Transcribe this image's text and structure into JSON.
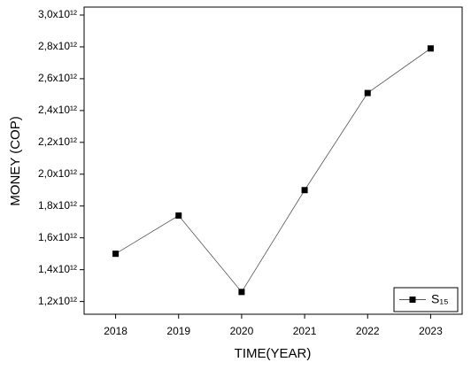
{
  "chart_data": {
    "type": "line",
    "x_label": "TIME(YEAR)",
    "y_label": "MONEY (COP)",
    "x": [
      2018,
      2019,
      2020,
      2021,
      2022,
      2023
    ],
    "series": [
      {
        "name": "S₁₅",
        "color": "#000000",
        "line_color": "#555555",
        "values": [
          1500000000000.0,
          1740000000000.0,
          1260000000000.0,
          1900000000000.0,
          2510000000000.0,
          2790000000000.0
        ]
      }
    ],
    "xlim": [
      2017.5,
      2023.5
    ],
    "xticks": [
      2018,
      2019,
      2020,
      2021,
      2022,
      2023
    ],
    "ylim": [
      1120000000000.0,
      3050000000000.0
    ],
    "yticks": [
      {
        "value": 1200000000000.0,
        "label": "1,2x10¹²"
      },
      {
        "value": 1400000000000.0,
        "label": "1,4x10¹²"
      },
      {
        "value": 1600000000000.0,
        "label": "1,6x10¹²"
      },
      {
        "value": 1800000000000.0,
        "label": "1,8x10¹²"
      },
      {
        "value": 2000000000000.0,
        "label": "2,0x10¹²"
      },
      {
        "value": 2200000000000.0,
        "label": "2,2x10¹²"
      },
      {
        "value": 2400000000000.0,
        "label": "2,4x10¹²"
      },
      {
        "value": 2600000000000.0,
        "label": "2,6x10¹²"
      },
      {
        "value": 2800000000000.0,
        "label": "2,8x10¹²"
      },
      {
        "value": 3000000000000.0,
        "label": "3,0x10¹²"
      }
    ],
    "legend": "lower right"
  }
}
